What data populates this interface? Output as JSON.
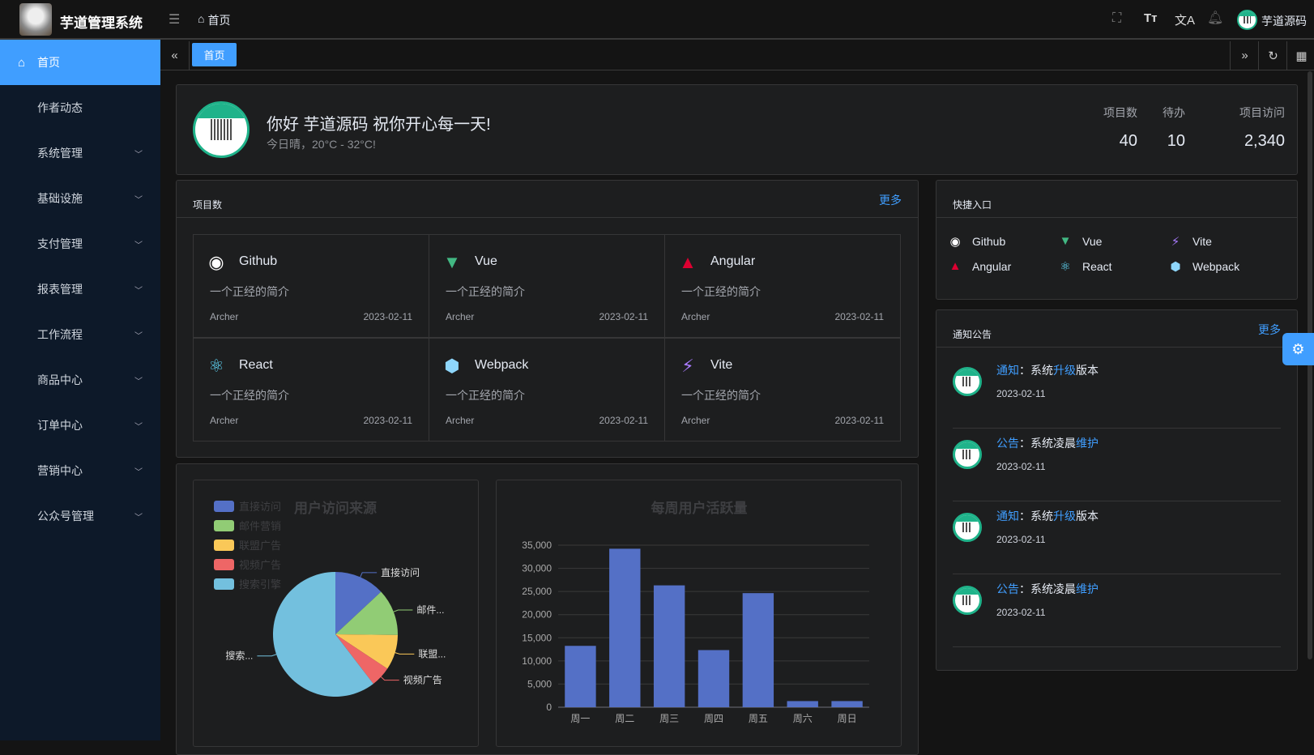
{
  "app": {
    "title": "芋道管理系统",
    "breadcrumb": "首页",
    "user": "芋道源码"
  },
  "header_icons": [
    "fullscreen-icon",
    "font-size-icon",
    "translate-icon",
    "bell-icon"
  ],
  "sidebar": {
    "items": [
      {
        "label": "首页",
        "active": true,
        "expandable": false
      },
      {
        "label": "作者动态",
        "expandable": false
      },
      {
        "label": "系统管理",
        "expandable": true
      },
      {
        "label": "基础设施",
        "expandable": true
      },
      {
        "label": "支付管理",
        "expandable": true
      },
      {
        "label": "报表管理",
        "expandable": true
      },
      {
        "label": "工作流程",
        "expandable": true
      },
      {
        "label": "商品中心",
        "expandable": true
      },
      {
        "label": "订单中心",
        "expandable": true
      },
      {
        "label": "营销中心",
        "expandable": true
      },
      {
        "label": "公众号管理",
        "expandable": true
      }
    ]
  },
  "tabs": [
    {
      "label": "首页",
      "active": true
    }
  ],
  "welcome": {
    "greeting": "你好 芋道源码 祝你开心每一天!",
    "weather": "今日晴，20°C - 32°C!",
    "stats": [
      {
        "label": "项目数",
        "value": "40"
      },
      {
        "label": "待办",
        "value": "10"
      },
      {
        "label": "项目访问",
        "value": "2,340"
      }
    ]
  },
  "projects": {
    "title": "项目数",
    "more": "更多",
    "items": [
      {
        "name": "Github",
        "icon": "github-icon",
        "color": "#ffffff",
        "desc": "一个正经的简介",
        "author": "Archer",
        "date": "2023-02-11"
      },
      {
        "name": "Vue",
        "icon": "vue-icon",
        "color": "#42b883",
        "desc": "一个正经的简介",
        "author": "Archer",
        "date": "2023-02-11"
      },
      {
        "name": "Angular",
        "icon": "angular-icon",
        "color": "#dd0031",
        "desc": "一个正经的简介",
        "author": "Archer",
        "date": "2023-02-11"
      },
      {
        "name": "React",
        "icon": "react-icon",
        "color": "#61dafb",
        "desc": "一个正经的简介",
        "author": "Archer",
        "date": "2023-02-11"
      },
      {
        "name": "Webpack",
        "icon": "webpack-icon",
        "color": "#8ed6fb",
        "desc": "一个正经的简介",
        "author": "Archer",
        "date": "2023-02-11"
      },
      {
        "name": "Vite",
        "icon": "vite-icon",
        "color": "#a97bff",
        "desc": "一个正经的简介",
        "author": "Archer",
        "date": "2023-02-11"
      }
    ]
  },
  "quick": {
    "title": "快捷入口",
    "items": [
      {
        "name": "Github",
        "icon": "github-icon",
        "color": "#ffffff"
      },
      {
        "name": "Vue",
        "icon": "vue-icon",
        "color": "#42b883"
      },
      {
        "name": "Vite",
        "icon": "vite-icon",
        "color": "#a97bff"
      },
      {
        "name": "Angular",
        "icon": "angular-icon",
        "color": "#dd0031"
      },
      {
        "name": "React",
        "icon": "react-icon",
        "color": "#61dafb"
      },
      {
        "name": "Webpack",
        "icon": "webpack-icon",
        "color": "#8ed6fb"
      }
    ]
  },
  "notices": {
    "title": "通知公告",
    "more": "更多",
    "items": [
      {
        "type": "通知",
        "sep": "：",
        "pre": "系统",
        "hl": "升级",
        "post": "版本",
        "date": "2023-02-11"
      },
      {
        "type": "公告",
        "sep": "：",
        "pre": "系统凌晨",
        "hl": "维护",
        "post": "",
        "date": "2023-02-11"
      },
      {
        "type": "通知",
        "sep": "：",
        "pre": "系统",
        "hl": "升级",
        "post": "版本",
        "date": "2023-02-11"
      },
      {
        "type": "公告",
        "sep": "：",
        "pre": "系统凌晨",
        "hl": "维护",
        "post": "",
        "date": "2023-02-11"
      }
    ]
  },
  "chart_data": [
    {
      "type": "pie",
      "title": "用户访问来源",
      "legend_position": "top-left",
      "categories": [
        "直接访问",
        "邮件营销",
        "联盟广告",
        "视频广告",
        "搜索引擎"
      ],
      "slice_labels": [
        "直接访问",
        "邮件...",
        "联盟...",
        "视频广告",
        "搜索..."
      ],
      "values": [
        335,
        310,
        234,
        135,
        1548
      ],
      "colors": [
        "#5470c6",
        "#91cc75",
        "#fac858",
        "#ee6666",
        "#73c0de"
      ]
    },
    {
      "type": "bar",
      "title": "每周用户活跃量",
      "categories": [
        "周一",
        "周二",
        "周三",
        "周四",
        "周五",
        "周六",
        "周日"
      ],
      "values": [
        13253,
        34235,
        26321,
        12340,
        24643,
        1322,
        1324
      ],
      "ylim": [
        0,
        35000
      ],
      "yticks": [
        "0",
        "5,000",
        "10,000",
        "15,000",
        "20,000",
        "25,000",
        "30,000",
        "35,000"
      ],
      "grid": true,
      "color": "#5470c6"
    }
  ]
}
